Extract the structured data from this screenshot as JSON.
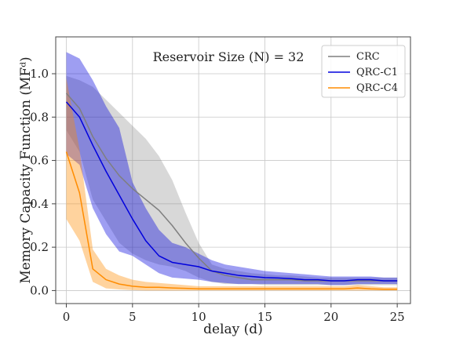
{
  "chart_data": {
    "type": "line",
    "annotation": "Reservoir Size (N) = 32",
    "xlabel": "delay (d)",
    "ylabel": "Memory Capacity Function (MFᵈ)",
    "xlim": [
      -0.8,
      26
    ],
    "ylim": [
      -0.06,
      1.17
    ],
    "xticks": [
      0,
      5,
      10,
      15,
      20,
      25
    ],
    "yticks": [
      0.0,
      0.2,
      0.4,
      0.6,
      0.8,
      1.0
    ],
    "grid": true,
    "legend_position": "top-right",
    "series": [
      {
        "name": "CRC",
        "color": "#7f7f7f",
        "x": [
          0,
          1,
          2,
          3,
          4,
          5,
          6,
          7,
          8,
          9,
          10,
          11,
          12,
          13,
          14,
          15,
          16,
          17,
          18,
          19,
          20,
          21,
          22,
          23,
          24,
          25
        ],
        "y": [
          0.91,
          0.84,
          0.71,
          0.61,
          0.53,
          0.47,
          0.42,
          0.37,
          0.3,
          0.22,
          0.15,
          0.09,
          0.07,
          0.06,
          0.05,
          0.05,
          0.05,
          0.05,
          0.045,
          0.045,
          0.045,
          0.045,
          0.045,
          0.045,
          0.045,
          0.045
        ],
        "upper": [
          0.99,
          0.97,
          0.94,
          0.88,
          0.82,
          0.76,
          0.7,
          0.62,
          0.51,
          0.36,
          0.22,
          0.12,
          0.1,
          0.09,
          0.08,
          0.075,
          0.07,
          0.07,
          0.065,
          0.06,
          0.06,
          0.06,
          0.06,
          0.06,
          0.06,
          0.06
        ],
        "lower": [
          0.74,
          0.64,
          0.42,
          0.32,
          0.22,
          0.17,
          0.14,
          0.12,
          0.11,
          0.09,
          0.06,
          0.04,
          0.03,
          0.03,
          0.03,
          0.025,
          0.025,
          0.025,
          0.025,
          0.025,
          0.025,
          0.025,
          0.025,
          0.025,
          0.025,
          0.025
        ]
      },
      {
        "name": "QRC-C1",
        "color": "#0000dd",
        "x": [
          0,
          1,
          2,
          3,
          4,
          5,
          6,
          7,
          8,
          9,
          10,
          11,
          12,
          13,
          14,
          15,
          16,
          17,
          18,
          19,
          20,
          21,
          22,
          23,
          24,
          25
        ],
        "y": [
          0.87,
          0.8,
          0.67,
          0.55,
          0.44,
          0.33,
          0.23,
          0.16,
          0.13,
          0.12,
          0.11,
          0.09,
          0.08,
          0.07,
          0.065,
          0.06,
          0.058,
          0.055,
          0.05,
          0.05,
          0.045,
          0.045,
          0.05,
          0.05,
          0.045,
          0.045
        ],
        "upper": [
          1.1,
          1.07,
          0.97,
          0.85,
          0.75,
          0.5,
          0.38,
          0.28,
          0.22,
          0.2,
          0.17,
          0.14,
          0.12,
          0.11,
          0.1,
          0.09,
          0.085,
          0.08,
          0.075,
          0.07,
          0.065,
          0.065,
          0.065,
          0.065,
          0.06,
          0.06
        ],
        "lower": [
          0.63,
          0.58,
          0.38,
          0.26,
          0.18,
          0.16,
          0.12,
          0.08,
          0.06,
          0.055,
          0.05,
          0.04,
          0.035,
          0.03,
          0.03,
          0.03,
          0.03,
          0.03,
          0.03,
          0.03,
          0.025,
          0.025,
          0.03,
          0.03,
          0.03,
          0.03
        ]
      },
      {
        "name": "QRC-C4",
        "color": "#ff8c00",
        "x": [
          0,
          1,
          2,
          3,
          4,
          5,
          6,
          7,
          8,
          9,
          10,
          11,
          12,
          13,
          14,
          15,
          16,
          17,
          18,
          19,
          20,
          21,
          22,
          23,
          24,
          25
        ],
        "y": [
          0.64,
          0.45,
          0.1,
          0.05,
          0.03,
          0.02,
          0.015,
          0.015,
          0.012,
          0.01,
          0.008,
          0.008,
          0.008,
          0.008,
          0.008,
          0.008,
          0.008,
          0.008,
          0.008,
          0.008,
          0.008,
          0.008,
          0.012,
          0.008,
          0.006,
          0.006
        ],
        "upper": [
          0.98,
          0.65,
          0.19,
          0.1,
          0.07,
          0.05,
          0.04,
          0.035,
          0.03,
          0.025,
          0.02,
          0.02,
          0.02,
          0.02,
          0.02,
          0.02,
          0.02,
          0.02,
          0.02,
          0.02,
          0.02,
          0.02,
          0.025,
          0.02,
          0.015,
          0.015
        ],
        "lower": [
          0.33,
          0.23,
          0.04,
          0.01,
          0.005,
          0.002,
          0.0,
          0.0,
          0.0,
          0.0,
          0.0,
          0.0,
          0.0,
          0.0,
          0.0,
          0.0,
          0.0,
          0.0,
          0.0,
          0.0,
          0.0,
          0.0,
          0.0,
          0.0,
          0.0,
          0.0
        ]
      }
    ]
  }
}
